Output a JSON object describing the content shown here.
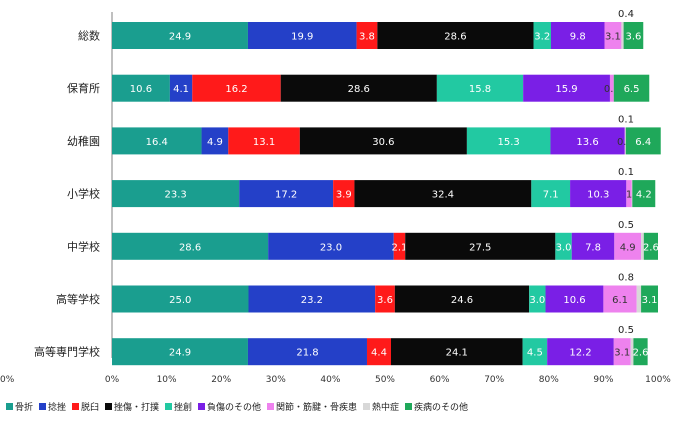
{
  "chart_data": {
    "type": "bar",
    "orientation": "horizontal",
    "stacked": "percent",
    "categories": [
      "総数",
      "保育所",
      "幼稚園",
      "小学校",
      "中学校",
      "高等学校",
      "高等専門学校"
    ],
    "series": [
      {
        "name": "骨折",
        "color": "#1a9e8f",
        "values": [
          24.9,
          10.6,
          16.4,
          23.3,
          28.6,
          25.0,
          24.9
        ]
      },
      {
        "name": "捻挫",
        "color": "#2440c8",
        "values": [
          19.9,
          4.1,
          4.9,
          17.2,
          23.0,
          23.2,
          21.8
        ]
      },
      {
        "name": "脱臼",
        "color": "#ff1a1a",
        "values": [
          3.8,
          16.2,
          13.1,
          3.9,
          2.1,
          3.6,
          4.4
        ]
      },
      {
        "name": "挫傷・打撲",
        "color": "#0a0a0a",
        "values": [
          28.6,
          28.6,
          30.6,
          32.4,
          27.5,
          24.6,
          24.1
        ]
      },
      {
        "name": "挫創",
        "color": "#22c9a2",
        "values": [
          3.2,
          15.8,
          15.3,
          7.1,
          3.0,
          3.0,
          4.5
        ]
      },
      {
        "name": "負傷のその他",
        "color": "#7a1fe6",
        "values": [
          9.8,
          15.9,
          13.6,
          10.3,
          7.8,
          10.6,
          12.2
        ]
      },
      {
        "name": "関節・筋腱・骨疾患",
        "color": "#ee82ee",
        "values": [
          3.1,
          0.7,
          0.1,
          1.0,
          4.9,
          6.1,
          3.1
        ]
      },
      {
        "name": "熱中症",
        "color": "#d8d8d8",
        "values": [
          0.4,
          0.0,
          0.1,
          0.1,
          0.5,
          0.8,
          0.5
        ]
      },
      {
        "name": "疾病のその他",
        "color": "#1fa85a",
        "values": [
          3.6,
          6.5,
          6.4,
          4.2,
          2.6,
          3.1,
          2.6
        ]
      }
    ],
    "bar_labels": [
      [
        "24.9",
        "19.9",
        "3.8",
        "28.6",
        "3.2",
        "9.8",
        "3.1",
        "",
        "3.6"
      ],
      [
        "10.6",
        "4.1",
        "16.2",
        "28.6",
        "15.8",
        "15.9",
        "0.7",
        "",
        "6.5"
      ],
      [
        "16.4",
        "4.9",
        "13.1",
        "30.6",
        "15.3",
        "13.6",
        "0.1",
        "",
        "6.4"
      ],
      [
        "23.3",
        "17.2",
        "3.9",
        "32.4",
        "7.1",
        "10.3",
        "1",
        "",
        "4.2"
      ],
      [
        "28.6",
        "23.0",
        "2.1",
        "27.5",
        "3.0",
        "7.8",
        "4.9",
        "",
        "2.6"
      ],
      [
        "25.0",
        "23.2",
        "3.6",
        "24.6",
        "3.0",
        "10.6",
        "6.1",
        "",
        "3.1"
      ],
      [
        "24.9",
        "21.8",
        "4.4",
        "24.1",
        "4.5",
        "12.2",
        "3.1",
        "",
        "2.6"
      ]
    ],
    "above_labels": [
      "0.4",
      "",
      "0.1",
      "0.1",
      "0.5",
      "0.8",
      "0.5"
    ],
    "x_ticks": [
      "0%",
      "10%",
      "20%",
      "30%",
      "40%",
      "50%",
      "60%",
      "70%",
      "80%",
      "90%",
      "100%"
    ],
    "xlim": [
      0,
      100
    ],
    "grid": false,
    "legend_position": "bottom",
    "left_edge_label": "0%"
  }
}
